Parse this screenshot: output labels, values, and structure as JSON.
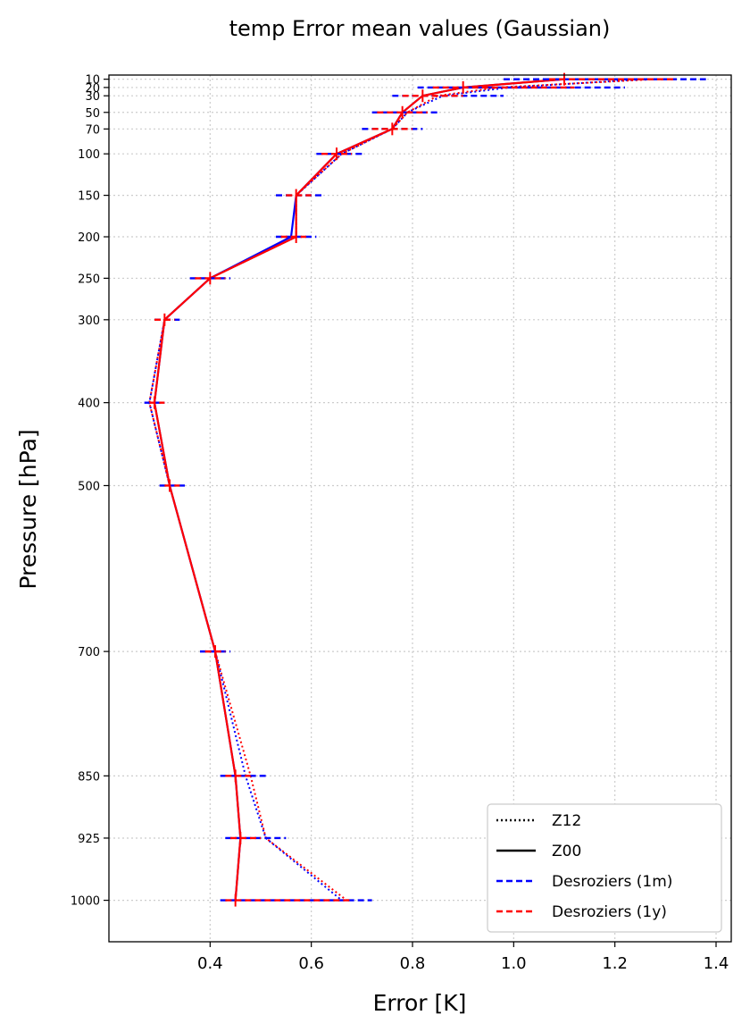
{
  "chart_data": {
    "type": "line",
    "title": "temp Error mean values (Gaussian)",
    "xlabel": "Error [K]",
    "ylabel": "Pressure [hPa]",
    "xlim": [
      0.2,
      1.43
    ],
    "ylim": [
      1050,
      5
    ],
    "xticks": [
      0.4,
      0.6,
      0.8,
      1.0,
      1.2,
      1.4
    ],
    "yticks": [
      10,
      20,
      30,
      50,
      70,
      100,
      150,
      200,
      250,
      300,
      400,
      500,
      700,
      850,
      925,
      1000
    ],
    "grid": true,
    "legend_position": "lower-right",
    "legend": [
      {
        "label": "Z12",
        "style": "dotted",
        "color": "#000000"
      },
      {
        "label": "Z00",
        "style": "solid",
        "color": "#000000"
      },
      {
        "label": "Desroziers (1m)",
        "style": "dashed",
        "color": "#0000ff"
      },
      {
        "label": "Desroziers (1y)",
        "style": "dashed",
        "color": "#ff0000"
      }
    ],
    "pressure_levels": [
      10,
      20,
      30,
      50,
      70,
      100,
      150,
      200,
      250,
      300,
      400,
      500,
      700,
      850,
      925,
      1000
    ],
    "series": [
      {
        "key": "1m_z12",
        "color": "#0000ff",
        "style": "dotted",
        "values": [
          1.26,
          0.99,
          0.86,
          0.79,
          0.76,
          0.66,
          0.57,
          0.57,
          0.4,
          0.31,
          0.28,
          0.32,
          0.41,
          0.47,
          0.51,
          0.66
        ]
      },
      {
        "key": "1y_z12",
        "color": "#ff0000",
        "style": "dotted",
        "values": [
          1.28,
          0.97,
          0.85,
          0.79,
          0.76,
          0.66,
          0.57,
          0.57,
          0.4,
          0.31,
          0.28,
          0.32,
          0.41,
          0.48,
          0.51,
          0.67
        ]
      },
      {
        "key": "1m_z00",
        "color": "#0000ff",
        "style": "solid",
        "values": [
          1.1,
          0.9,
          0.82,
          0.78,
          0.76,
          0.65,
          0.57,
          0.56,
          0.4,
          0.31,
          0.29,
          0.32,
          0.41,
          0.45,
          0.46,
          0.45
        ]
      },
      {
        "key": "1y_z00",
        "color": "#ff0000",
        "style": "solid",
        "values": [
          1.1,
          0.9,
          0.82,
          0.78,
          0.76,
          0.65,
          0.57,
          0.57,
          0.4,
          0.31,
          0.29,
          0.32,
          0.41,
          0.45,
          0.46,
          0.45
        ]
      }
    ],
    "error_bars_blue": [
      [
        0.98,
        1.38
      ],
      [
        0.81,
        1.22
      ],
      [
        0.76,
        0.98
      ],
      [
        0.72,
        0.85
      ],
      [
        0.7,
        0.82
      ],
      [
        0.61,
        0.7
      ],
      [
        0.53,
        0.62
      ],
      [
        0.53,
        0.61
      ],
      [
        0.36,
        0.44
      ],
      [
        0.29,
        0.34
      ],
      [
        0.27,
        0.31
      ],
      [
        0.3,
        0.35
      ],
      [
        0.38,
        0.44
      ],
      [
        0.42,
        0.51
      ],
      [
        0.43,
        0.55
      ],
      [
        0.42,
        0.72
      ]
    ],
    "error_bars_red": [
      [
        1.07,
        1.32
      ],
      [
        0.84,
        1.12
      ],
      [
        0.78,
        0.9
      ],
      [
        0.73,
        0.83
      ],
      [
        0.72,
        0.8
      ],
      [
        0.62,
        0.68
      ],
      [
        0.55,
        0.6
      ],
      [
        0.54,
        0.59
      ],
      [
        0.37,
        0.43
      ],
      [
        0.29,
        0.33
      ],
      [
        0.28,
        0.31
      ],
      [
        0.31,
        0.34
      ],
      [
        0.39,
        0.43
      ],
      [
        0.43,
        0.48
      ],
      [
        0.44,
        0.5
      ],
      [
        0.43,
        0.68
      ]
    ],
    "colors": {
      "axis": "#000000",
      "grid": "#cccccc",
      "blue": "#0000ff",
      "red": "#ff0000"
    }
  }
}
